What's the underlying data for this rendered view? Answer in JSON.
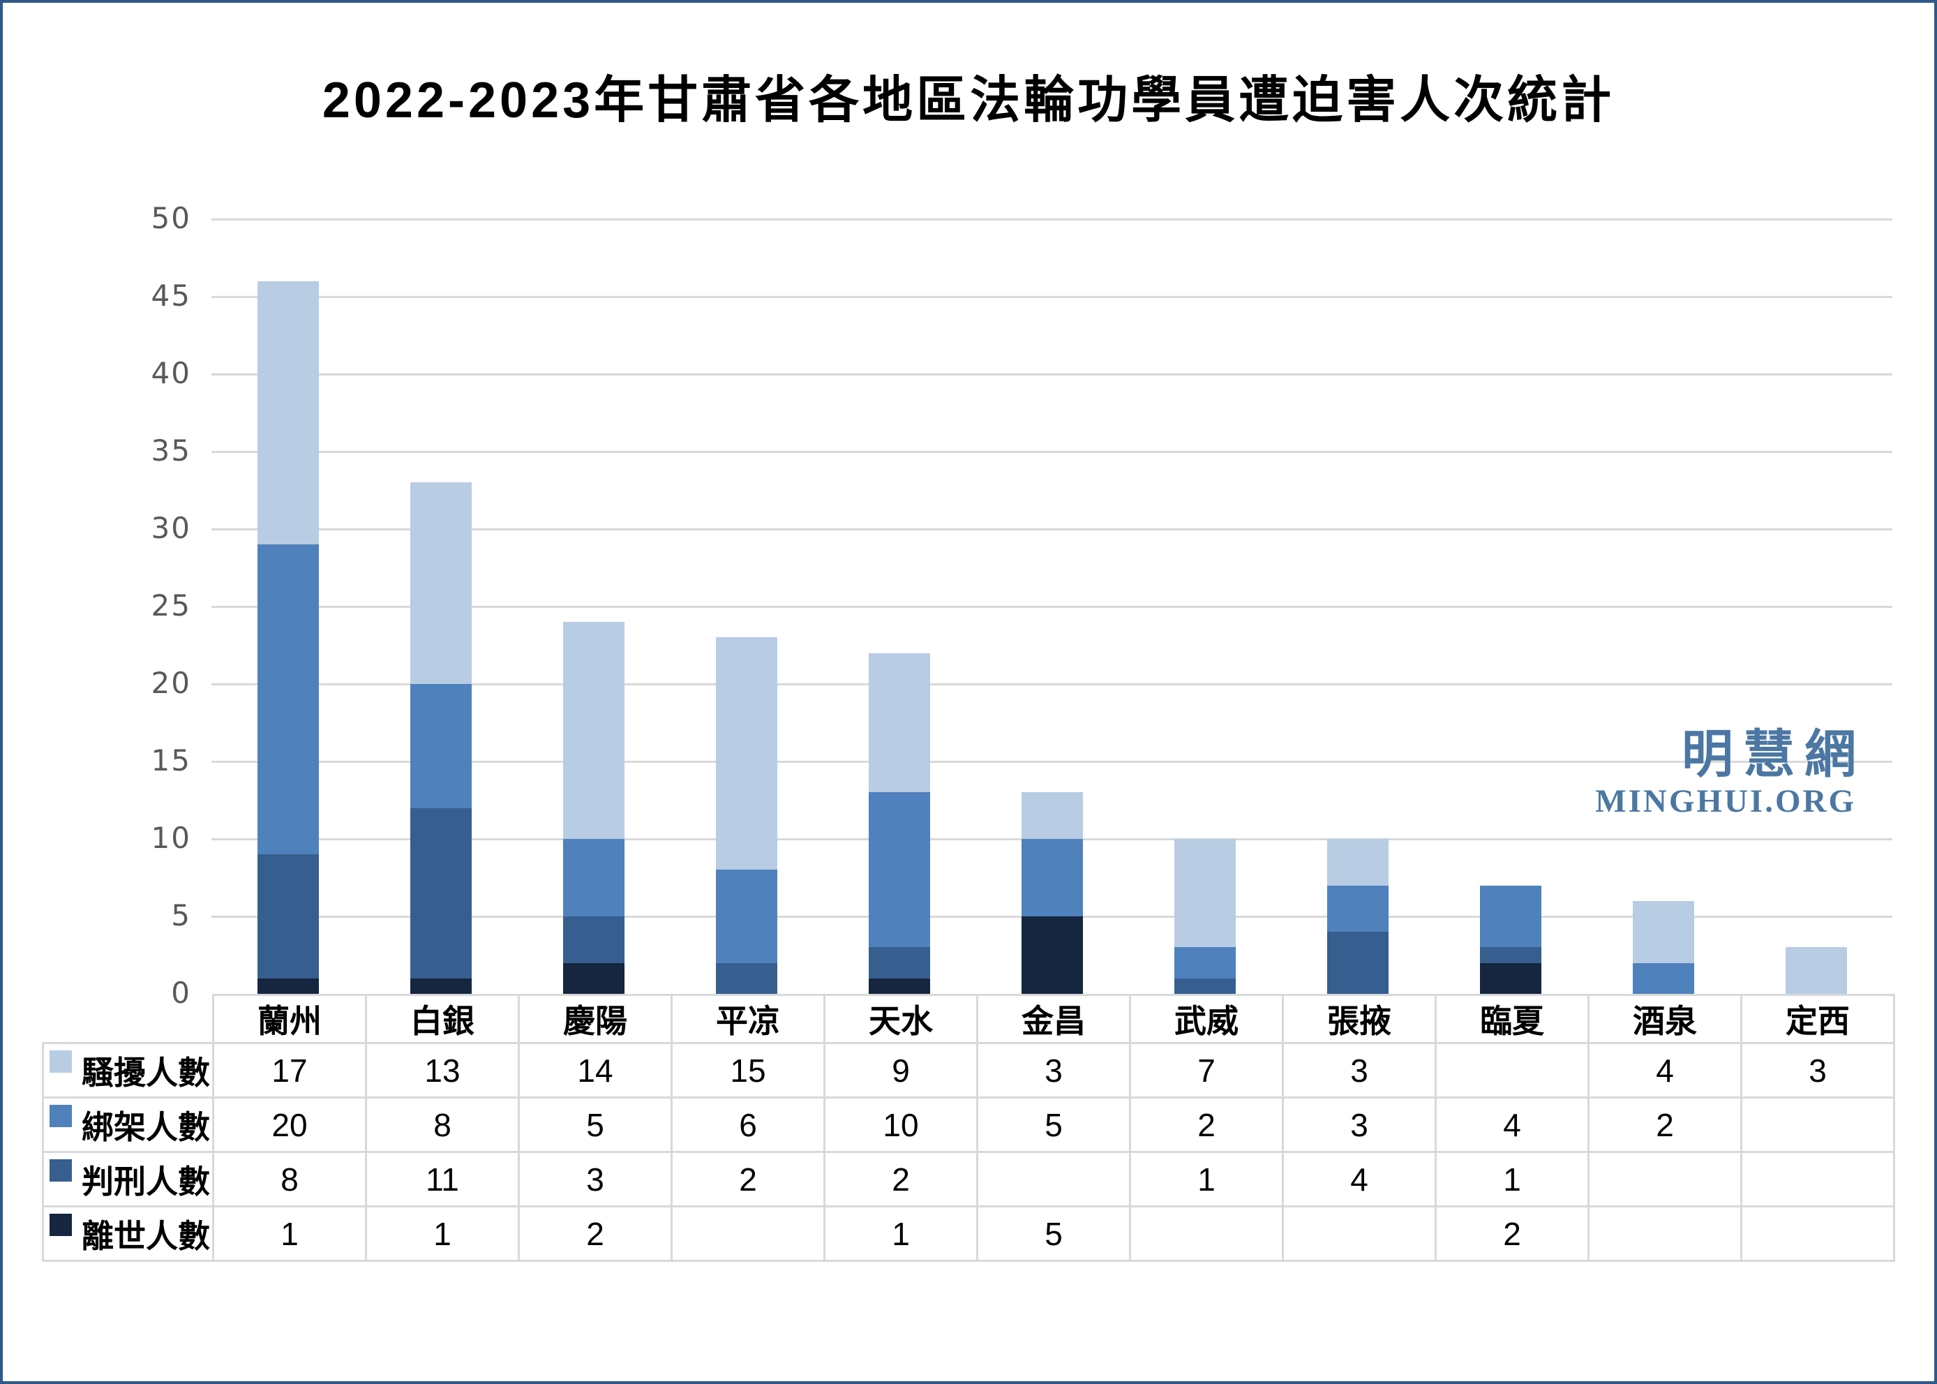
{
  "page": {
    "frame_color": "#2d5a87",
    "background": "#ffffff"
  },
  "title": "2022-2023年甘肅省各地區法輪功學員遭迫害人次統計",
  "watermark": {
    "site_name_cjk": "明慧網",
    "site_name_latin": "MINGHUI.ORG",
    "color": "#4c77a3"
  },
  "axis": {
    "tick_color": "#595959",
    "grid_color": "#d9d9d9"
  },
  "chart_data": {
    "type": "bar",
    "stacked": true,
    "title": "2022-2023年甘肅省各地區法輪功學員遭迫害人次統計",
    "categories": [
      "蘭州",
      "白銀",
      "慶陽",
      "平凉",
      "天水",
      "金昌",
      "武威",
      "張掖",
      "臨夏",
      "酒泉",
      "定西"
    ],
    "series": [
      {
        "name": "騷擾人數",
        "color": "#b8cce4",
        "values": [
          17,
          13,
          14,
          15,
          9,
          3,
          7,
          3,
          null,
          4,
          3
        ]
      },
      {
        "name": "綁架人數",
        "color": "#4f81bd",
        "values": [
          20,
          8,
          5,
          6,
          10,
          5,
          2,
          3,
          4,
          2,
          null
        ]
      },
      {
        "name": "判刑人數",
        "color": "#365f8f",
        "values": [
          8,
          11,
          3,
          2,
          2,
          null,
          1,
          4,
          1,
          null,
          null
        ]
      },
      {
        "name": "離世人數",
        "color": "#15263e",
        "values": [
          1,
          1,
          2,
          null,
          1,
          5,
          null,
          null,
          2,
          null,
          null
        ]
      }
    ],
    "stack_order_bottom_to_top": [
      "離世人數",
      "判刑人數",
      "綁架人數",
      "騷擾人數"
    ],
    "totals": [
      46,
      33,
      24,
      23,
      22,
      13,
      10,
      10,
      7,
      6,
      3
    ],
    "xlabel": "",
    "ylabel": "",
    "ylim": [
      0,
      50
    ],
    "yticks": [
      0,
      5,
      10,
      15,
      20,
      25,
      30,
      35,
      40,
      45,
      50
    ],
    "grid": true,
    "legend_position": "table-rows"
  }
}
